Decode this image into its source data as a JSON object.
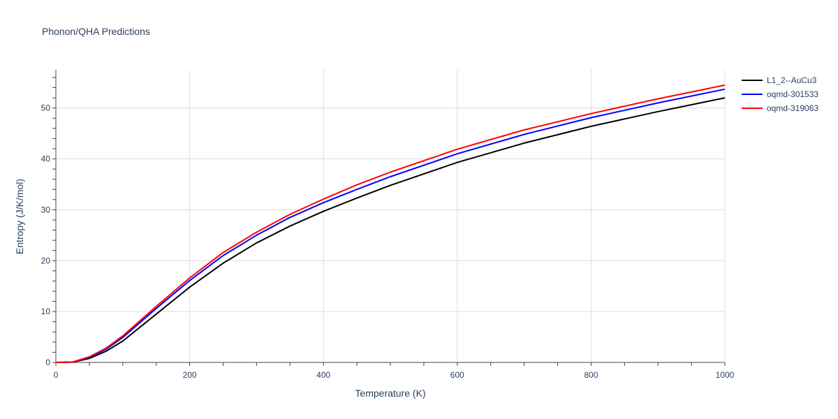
{
  "chart_data": {
    "type": "line",
    "title": "Phonon/QHA Predictions",
    "xlabel": "Temperature (K)",
    "ylabel": "Entropy (J/K/mol)",
    "xlim": [
      0,
      1000
    ],
    "ylim": [
      0,
      57.5
    ],
    "xticks": [
      0,
      200,
      400,
      600,
      800,
      1000
    ],
    "yticks": [
      0,
      10,
      20,
      30,
      40,
      50
    ],
    "grid": true,
    "legend_position": "top-right",
    "x": [
      0,
      25,
      50,
      75,
      100,
      150,
      200,
      250,
      300,
      350,
      400,
      450,
      500,
      600,
      700,
      800,
      900,
      1000
    ],
    "series": [
      {
        "name": "L1_2--AuCu3",
        "color": "#000000",
        "values": [
          0,
          0.05,
          0.8,
          2.2,
          4.2,
          9.5,
          14.8,
          19.5,
          23.5,
          26.8,
          29.7,
          32.3,
          34.8,
          39.3,
          43.1,
          46.4,
          49.3,
          52.0
        ]
      },
      {
        "name": "oqmd-301533",
        "color": "#0000ff",
        "values": [
          0,
          0.07,
          1.0,
          2.6,
          4.9,
          10.6,
          16.1,
          21.0,
          25.0,
          28.5,
          31.4,
          34.0,
          36.5,
          41.0,
          44.8,
          48.1,
          51.0,
          53.7
        ]
      },
      {
        "name": "oqmd-319063",
        "color": "#ff0000",
        "values": [
          0,
          0.08,
          1.1,
          2.8,
          5.2,
          11.0,
          16.6,
          21.6,
          25.6,
          29.1,
          32.1,
          34.9,
          37.4,
          41.9,
          45.7,
          48.9,
          51.8,
          54.5
        ]
      }
    ]
  }
}
